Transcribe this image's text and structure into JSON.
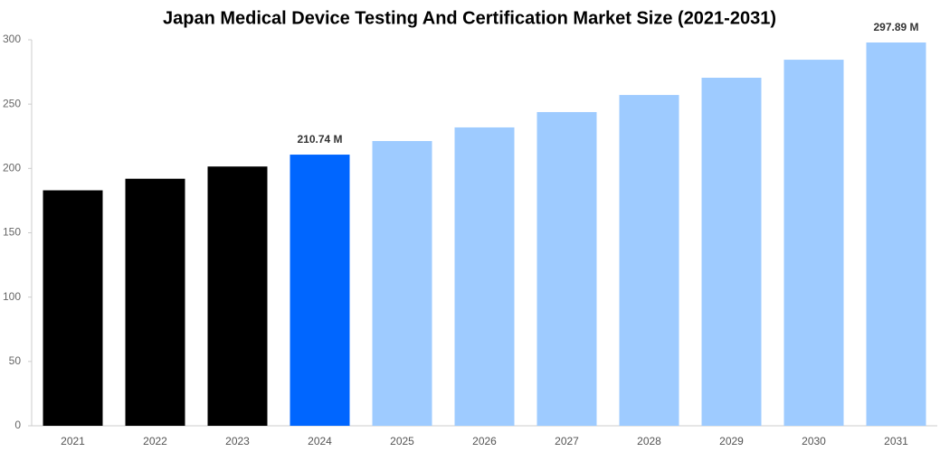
{
  "chart_data": {
    "type": "bar",
    "title": "Japan Medical Device Testing And Certification Market Size (2021-2031)",
    "categories": [
      "2021",
      "2022",
      "2023",
      "2024",
      "2025",
      "2026",
      "2027",
      "2028",
      "2029",
      "2030",
      "2031"
    ],
    "values": [
      183,
      192,
      201.5,
      210.74,
      221.3,
      231.9,
      243.8,
      257.1,
      270.5,
      284.5,
      297.89
    ],
    "value_labels": [
      null,
      null,
      null,
      "210.74 M",
      null,
      null,
      null,
      null,
      null,
      null,
      "297.89 M"
    ],
    "colors": [
      "#000000",
      "#000000",
      "#000000",
      "#0066ff",
      "#9ecbff",
      "#9ecbff",
      "#9ecbff",
      "#9ecbff",
      "#9ecbff",
      "#9ecbff",
      "#9ecbff"
    ],
    "ylim": [
      0,
      300
    ],
    "yticks": [
      0,
      50,
      100,
      150,
      200,
      250,
      300
    ],
    "grid": false
  }
}
